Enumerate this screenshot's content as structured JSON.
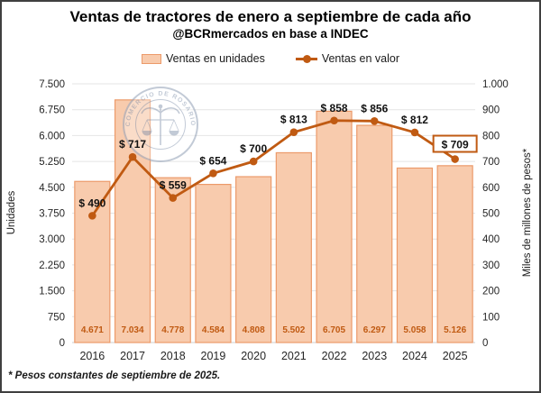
{
  "header": {
    "title": "Ventas de tractores de enero a septiembre de cada año",
    "subtitle": "@BCRmercados en base a INDEC"
  },
  "legend": [
    {
      "label": "Ventas en unidades",
      "marker": "bar-swatch"
    },
    {
      "label": "Ventas en valor",
      "marker": "line-dot-swatch"
    }
  ],
  "footnote": "* Pesos constantes de septiembre de 2025.",
  "watermark": {
    "seal_text": "COMERCIO DE ROSARIO",
    "emblem": "caduceus-scales-seal"
  },
  "colors": {
    "bar_fill": "#F8CBAD",
    "bar_border": "#EC9A6A",
    "line": "#C05A12",
    "bar_label": "#C05A12",
    "grid": "#E4E4E4",
    "axis_line": "#CDCDCD",
    "tick_text": "#262626",
    "label_text": "#111111",
    "watermark": "#9BA8BC"
  },
  "chart_data": {
    "type": "bar+line",
    "categories": [
      "2016",
      "2017",
      "2018",
      "2019",
      "2020",
      "2021",
      "2022",
      "2023",
      "2024",
      "2025"
    ],
    "series": [
      {
        "name": "Ventas en unidades",
        "type": "bar",
        "axis": "left",
        "values": [
          4671,
          7034,
          4778,
          4584,
          4808,
          5502,
          6705,
          6297,
          5058,
          5126
        ],
        "labels": [
          "4.671",
          "7.034",
          "4.778",
          "4.584",
          "4.808",
          "5.502",
          "6.705",
          "6.297",
          "5.058",
          "5.126"
        ]
      },
      {
        "name": "Ventas en valor",
        "type": "line",
        "axis": "right",
        "values": [
          490,
          717,
          559,
          654,
          700,
          813,
          858,
          856,
          812,
          709
        ],
        "labels": [
          "$ 490",
          "$ 717",
          "$ 559",
          "$ 654",
          "$ 700",
          "$ 813",
          "$ 858",
          "$ 856",
          "$ 812",
          "$ 709"
        ],
        "last_label_boxed": true
      }
    ],
    "left_axis": {
      "label": "Unidades",
      "min": 0,
      "max": 7500,
      "step": 750,
      "tick_labels": [
        "7.500",
        "6.750",
        "6.000",
        "5.250",
        "4.500",
        "3.750",
        "3.000",
        "2.250",
        "1.500",
        "750",
        "0"
      ]
    },
    "right_axis": {
      "label": "Miles de millones de pesos*",
      "min": 0,
      "max": 1000,
      "step": 100,
      "tick_labels": [
        "1.000",
        "900",
        "800",
        "700",
        "600",
        "500",
        "400",
        "300",
        "200",
        "100",
        "0"
      ]
    },
    "grid": true,
    "legend_position": "top"
  }
}
